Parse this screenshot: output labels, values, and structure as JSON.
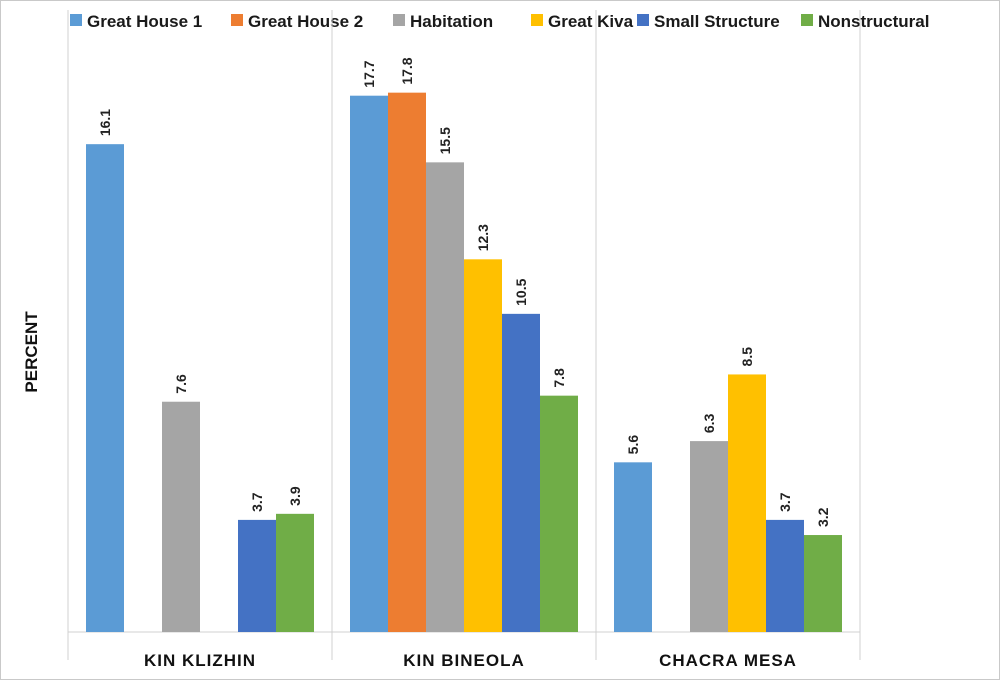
{
  "chart_data": {
    "type": "bar",
    "title": "",
    "xlabel": "",
    "ylabel": "PERCENT",
    "ylim": [
      0,
      20
    ],
    "grid": false,
    "legend_position": "top",
    "categories": [
      "KIN KLIZHIN",
      "KIN BINEOLA",
      "CHACRA MESA"
    ],
    "series": [
      {
        "name": "Great House 1",
        "color": "#5b9bd5",
        "values": [
          16.1,
          17.7,
          5.6
        ]
      },
      {
        "name": "Great House 2",
        "color": "#ed7d31",
        "values": [
          null,
          17.8,
          null
        ]
      },
      {
        "name": "Habitation",
        "color": "#a5a5a5",
        "values": [
          7.6,
          15.5,
          6.3
        ]
      },
      {
        "name": "Great Kiva",
        "color": "#ffc000",
        "values": [
          null,
          12.3,
          8.5
        ]
      },
      {
        "name": "Small Structure",
        "color": "#4472c4",
        "values": [
          3.7,
          10.5,
          3.7
        ]
      },
      {
        "name": "Nonstructural",
        "color": "#70ad47",
        "values": [
          3.9,
          7.8,
          3.2
        ]
      }
    ]
  }
}
